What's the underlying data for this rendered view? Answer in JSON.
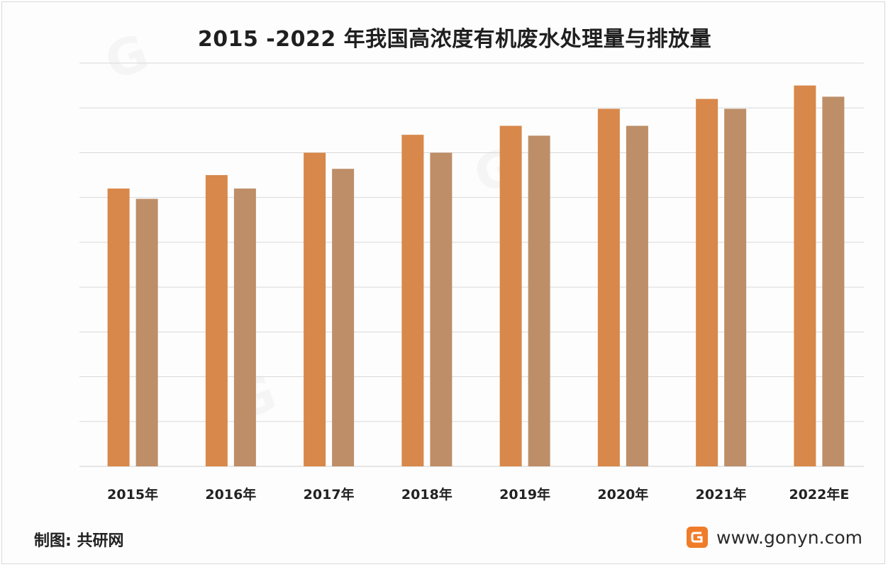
{
  "title": "2015 -2022 年我国高浓度有机废水处理量与排放量",
  "footer": {
    "source": "制图: 共研网",
    "website": "www.gonyn.com"
  },
  "colors": {
    "series1": "#d8884a",
    "series2": "#bd8e68",
    "gridline": "#d9d9d9",
    "logo": "#f07c2a"
  },
  "chart_data": {
    "type": "bar",
    "categories": [
      "2015年",
      "2016年",
      "2017年",
      "2018年",
      "2019年",
      "2020年",
      "2021年",
      "2022年E"
    ],
    "series": [
      {
        "values": [
          6.2,
          6.5,
          7.0,
          7.4,
          7.6,
          7.98,
          8.2,
          8.5
        ]
      },
      {
        "values": [
          5.97,
          6.2,
          6.64,
          7.0,
          7.38,
          7.6,
          7.98,
          8.25
        ]
      }
    ],
    "ylim": [
      0,
      9
    ],
    "yticks": [
      0,
      1,
      2,
      3,
      4,
      5,
      6,
      7,
      8,
      9
    ],
    "grid": true,
    "legend": "none"
  }
}
